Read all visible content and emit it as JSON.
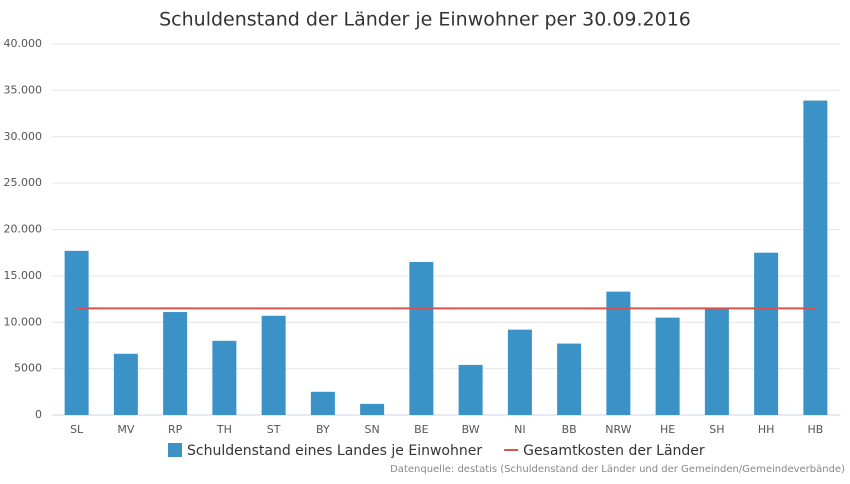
{
  "chart_data": {
    "type": "bar",
    "title": "Schuldenstand der Länder je Einwohner per 30.09.2016",
    "categories": [
      "SL",
      "MV",
      "RP",
      "TH",
      "ST",
      "BY",
      "SN",
      "BE",
      "BW",
      "NI",
      "BB",
      "NRW",
      "HE",
      "SH",
      "HH",
      "HB"
    ],
    "series": [
      {
        "name": "Schuldenstand eines Landes je Einwohner",
        "type": "bar",
        "color": "#3a92c6",
        "values": [
          17700,
          6600,
          11100,
          8000,
          10700,
          2500,
          1200,
          16500,
          5400,
          9200,
          7700,
          13300,
          10500,
          11500,
          17500,
          33900
        ]
      },
      {
        "name": "Gesamtkosten der Länder",
        "type": "line",
        "color": "#d9534f",
        "values": [
          11500,
          11500,
          11500,
          11500,
          11500,
          11500,
          11500,
          11500,
          11500,
          11500,
          11500,
          11500,
          11500,
          11500,
          11500,
          11500
        ]
      }
    ],
    "ylim": [
      0,
      40000
    ],
    "yticks": [
      0,
      5000,
      {
        "value": 10000,
        "label": "10.000"
      },
      {
        "value": 15000,
        "label": "15.000"
      },
      {
        "value": 20000,
        "label": "20.000"
      },
      {
        "value": 25000,
        "label": "25.000"
      },
      {
        "value": 30000,
        "label": "30.000"
      },
      {
        "value": 35000,
        "label": "35.000"
      },
      {
        "value": 40000,
        "label": "40.000"
      }
    ],
    "grid": true,
    "source": "Datenquelle: destatis (Schuldenstand der Länder und der Gemeinden/Gemeindeverbände)"
  }
}
